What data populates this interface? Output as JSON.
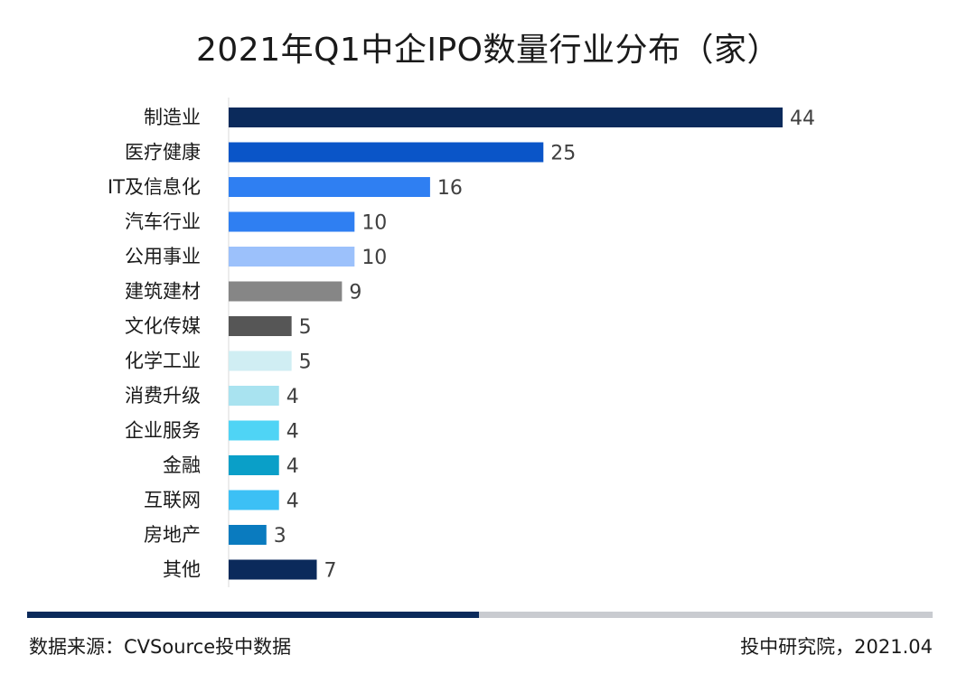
{
  "chart_data": {
    "type": "bar",
    "orientation": "horizontal",
    "title": "2021年Q1中企IPO数量行业分布（家）",
    "xlabel": "",
    "ylabel": "",
    "xlim": [
      0,
      44
    ],
    "grid": false,
    "legend": "none",
    "categories": [
      "制造业",
      "医疗健康",
      "IT及信息化",
      "汽车行业",
      "公用事业",
      "建筑建材",
      "文化传媒",
      "化学工业",
      "消费升级",
      "企业服务",
      "金融",
      "互联网",
      "房地产",
      "其他"
    ],
    "values": [
      44,
      25,
      16,
      10,
      10,
      9,
      5,
      5,
      4,
      4,
      4,
      4,
      3,
      7
    ],
    "colors": [
      "#0b2a5b",
      "#0a55c8",
      "#2f7ff2",
      "#2f7ff2",
      "#9cc1fb",
      "#868686",
      "#565656",
      "#d0eef3",
      "#a9e3f0",
      "#4fd4f5",
      "#0a9fc8",
      "#3cc0f5",
      "#0a7bbf",
      "#0b2a5b"
    ]
  },
  "footer": {
    "source": "数据来源：CVSource投中数据",
    "credit": "投中研究院，2021.04"
  }
}
